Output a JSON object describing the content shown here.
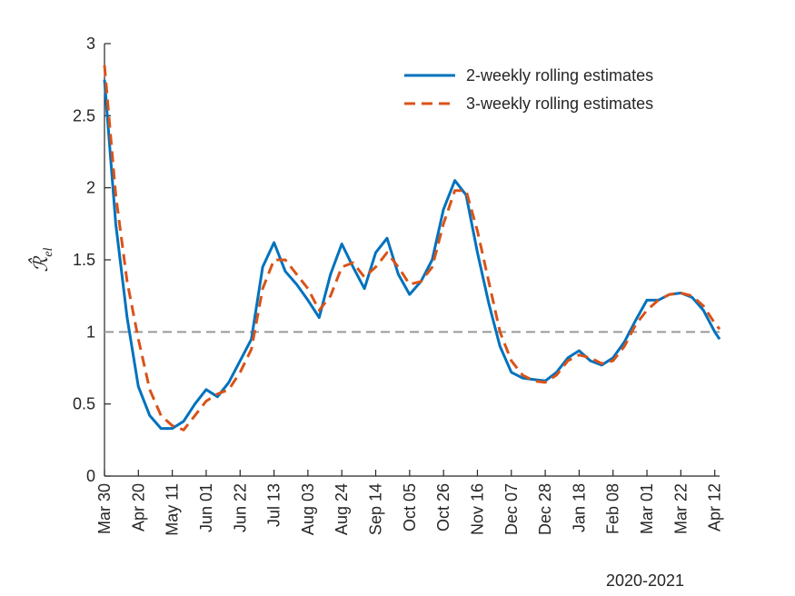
{
  "chart_data": {
    "type": "line",
    "ylabel": "ℛ̂",
    "ylabel_subscript": "el",
    "xlabel": "2020-2021",
    "x": [
      "2020-03-30",
      "2020-04-06",
      "2020-04-13",
      "2020-04-20",
      "2020-04-27",
      "2020-05-04",
      "2020-05-11",
      "2020-05-18",
      "2020-05-25",
      "2020-06-01",
      "2020-06-08",
      "2020-06-15",
      "2020-06-22",
      "2020-06-29",
      "2020-07-06",
      "2020-07-13",
      "2020-07-20",
      "2020-07-27",
      "2020-08-03",
      "2020-08-10",
      "2020-08-17",
      "2020-08-24",
      "2020-08-31",
      "2020-09-07",
      "2020-09-14",
      "2020-09-21",
      "2020-09-28",
      "2020-10-05",
      "2020-10-12",
      "2020-10-19",
      "2020-10-26",
      "2020-11-02",
      "2020-11-09",
      "2020-11-16",
      "2020-11-23",
      "2020-11-30",
      "2020-12-07",
      "2020-12-14",
      "2020-12-21",
      "2020-12-28",
      "2021-01-04",
      "2021-01-11",
      "2021-01-18",
      "2021-01-25",
      "2021-02-01",
      "2021-02-08",
      "2021-02-15",
      "2021-02-22",
      "2021-03-01",
      "2021-03-08",
      "2021-03-15",
      "2021-03-22",
      "2021-03-29",
      "2021-04-05",
      "2021-04-12",
      "2021-04-15"
    ],
    "series": [
      {
        "name": "2-weekly rolling estimates",
        "color": "#0072BD",
        "dash": false,
        "values": [
          2.75,
          1.75,
          1.1,
          0.62,
          0.42,
          0.33,
          0.33,
          0.38,
          0.5,
          0.6,
          0.55,
          0.65,
          0.8,
          0.95,
          1.45,
          1.62,
          1.42,
          1.33,
          1.22,
          1.1,
          1.4,
          1.61,
          1.45,
          1.3,
          1.55,
          1.65,
          1.4,
          1.26,
          1.35,
          1.5,
          1.85,
          2.05,
          1.95,
          1.55,
          1.2,
          0.9,
          0.72,
          0.68,
          0.67,
          0.66,
          0.72,
          0.82,
          0.87,
          0.8,
          0.77,
          0.82,
          0.93,
          1.08,
          1.22,
          1.22,
          1.26,
          1.27,
          1.24,
          1.15,
          1.0,
          0.95
        ]
      },
      {
        "name": "3-weekly rolling estimates",
        "color": "#D95319",
        "dash": true,
        "values": [
          2.85,
          1.95,
          1.35,
          0.95,
          0.6,
          0.42,
          0.35,
          0.32,
          0.42,
          0.52,
          0.57,
          0.6,
          0.72,
          0.88,
          1.3,
          1.5,
          1.5,
          1.4,
          1.3,
          1.15,
          1.25,
          1.45,
          1.48,
          1.38,
          1.45,
          1.55,
          1.45,
          1.33,
          1.35,
          1.45,
          1.75,
          1.98,
          1.98,
          1.7,
          1.35,
          1.0,
          0.8,
          0.7,
          0.66,
          0.65,
          0.7,
          0.8,
          0.84,
          0.82,
          0.78,
          0.8,
          0.9,
          1.05,
          1.15,
          1.22,
          1.26,
          1.27,
          1.25,
          1.18,
          1.06,
          1.02
        ]
      }
    ],
    "xlim": [
      "2020-03-30",
      "2021-04-15"
    ],
    "xticks": [
      {
        "value": "2020-03-30",
        "label": "Mar 30"
      },
      {
        "value": "2020-04-20",
        "label": "Apr 20"
      },
      {
        "value": "2020-05-11",
        "label": "May 11"
      },
      {
        "value": "2020-06-01",
        "label": "Jun 01"
      },
      {
        "value": "2020-06-22",
        "label": "Jun 22"
      },
      {
        "value": "2020-07-13",
        "label": "Jul 13"
      },
      {
        "value": "2020-08-03",
        "label": "Aug 03"
      },
      {
        "value": "2020-08-24",
        "label": "Aug 24"
      },
      {
        "value": "2020-09-14",
        "label": "Sep 14"
      },
      {
        "value": "2020-10-05",
        "label": "Oct 05"
      },
      {
        "value": "2020-10-26",
        "label": "Oct 26"
      },
      {
        "value": "2020-11-16",
        "label": "Nov 16"
      },
      {
        "value": "2020-12-07",
        "label": "Dec 07"
      },
      {
        "value": "2020-12-28",
        "label": "Dec 28"
      },
      {
        "value": "2021-01-18",
        "label": "Jan 18"
      },
      {
        "value": "2021-02-08",
        "label": "Feb 08"
      },
      {
        "value": "2021-03-01",
        "label": "Mar 01"
      },
      {
        "value": "2021-03-22",
        "label": "Mar 22"
      },
      {
        "value": "2021-04-12",
        "label": "Apr 12"
      }
    ],
    "ylim": [
      0,
      3
    ],
    "yticks": [
      0,
      0.5,
      1,
      1.5,
      2,
      2.5,
      3
    ],
    "reference_line": {
      "y": 1,
      "color": "#999999"
    },
    "grid": false,
    "legend": "upper right"
  }
}
